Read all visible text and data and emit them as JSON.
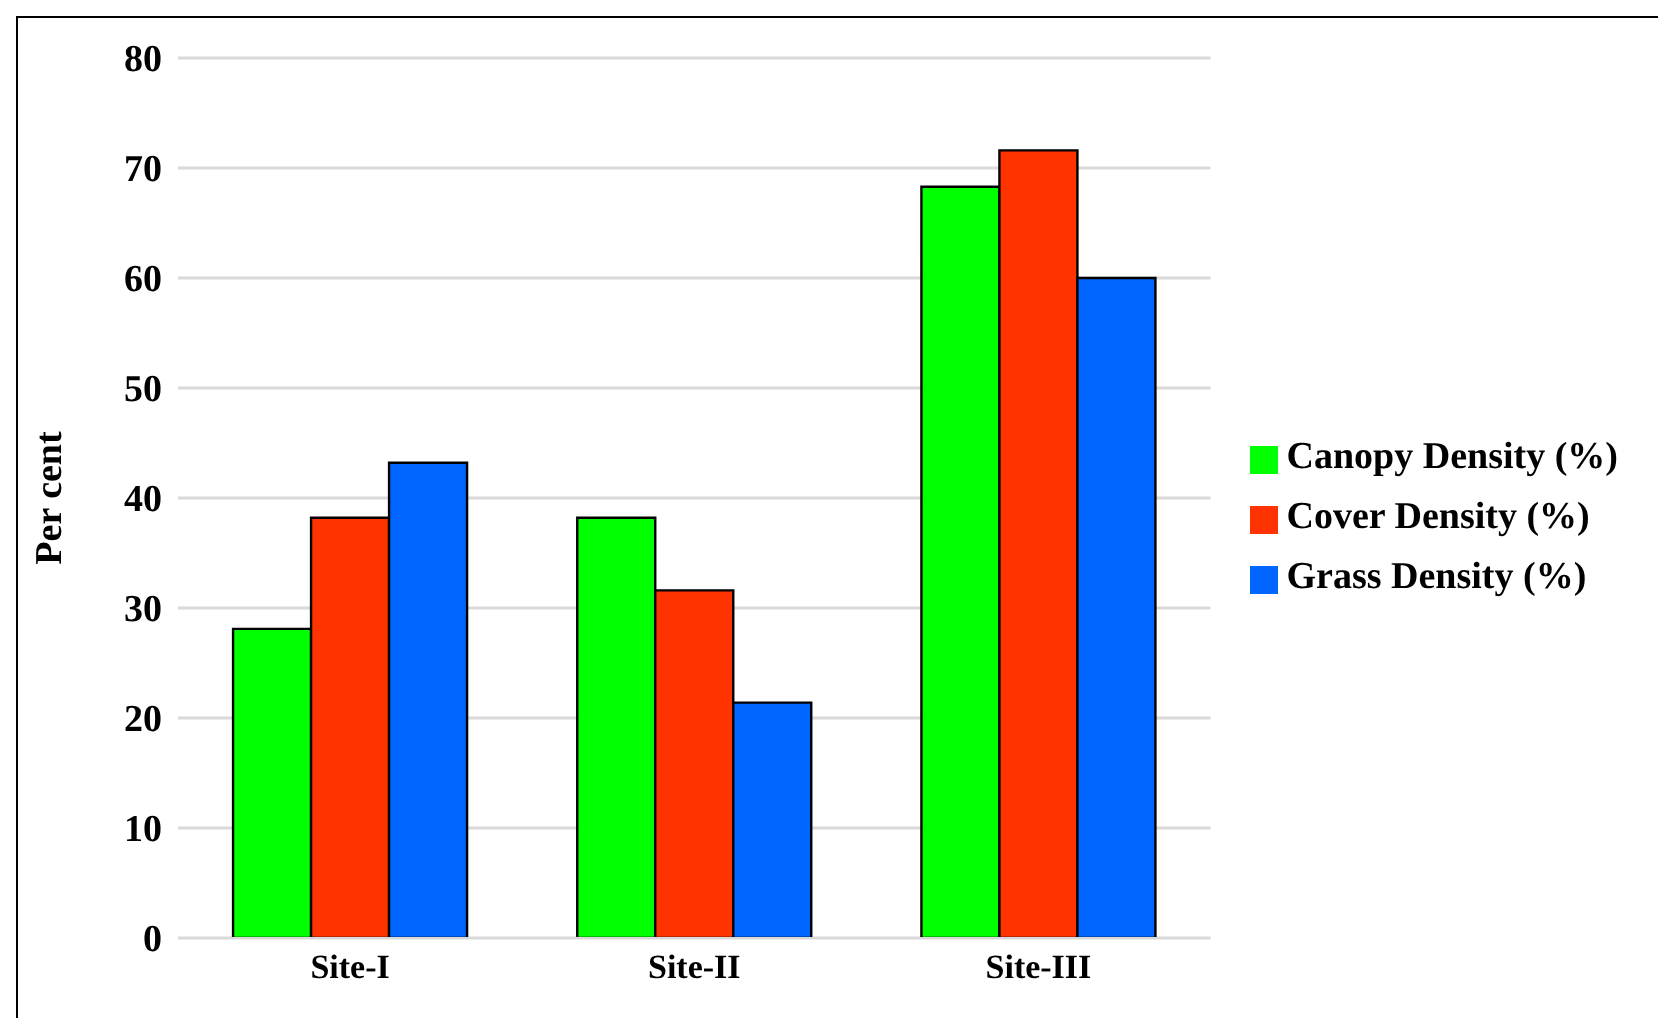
{
  "chart_data": {
    "type": "bar",
    "ylabel": "Per cent",
    "categories": [
      "Site-I",
      "Site-II",
      "Site-III"
    ],
    "series": [
      {
        "name": "Canopy Density (%)",
        "color": "#00ff00",
        "values": [
          28.1,
          38.2,
          68.3
        ]
      },
      {
        "name": "Cover Density (%)",
        "color": "#ff3300",
        "values": [
          38.2,
          31.6,
          71.6
        ]
      },
      {
        "name": "Grass Density (%)",
        "color": "#0066ff",
        "values": [
          43.2,
          21.4,
          60
        ]
      }
    ],
    "ylim": [
      0,
      80
    ],
    "yticks": [
      0,
      10,
      20,
      30,
      40,
      50,
      60,
      70,
      80
    ],
    "grid": "y",
    "legend": "right"
  }
}
